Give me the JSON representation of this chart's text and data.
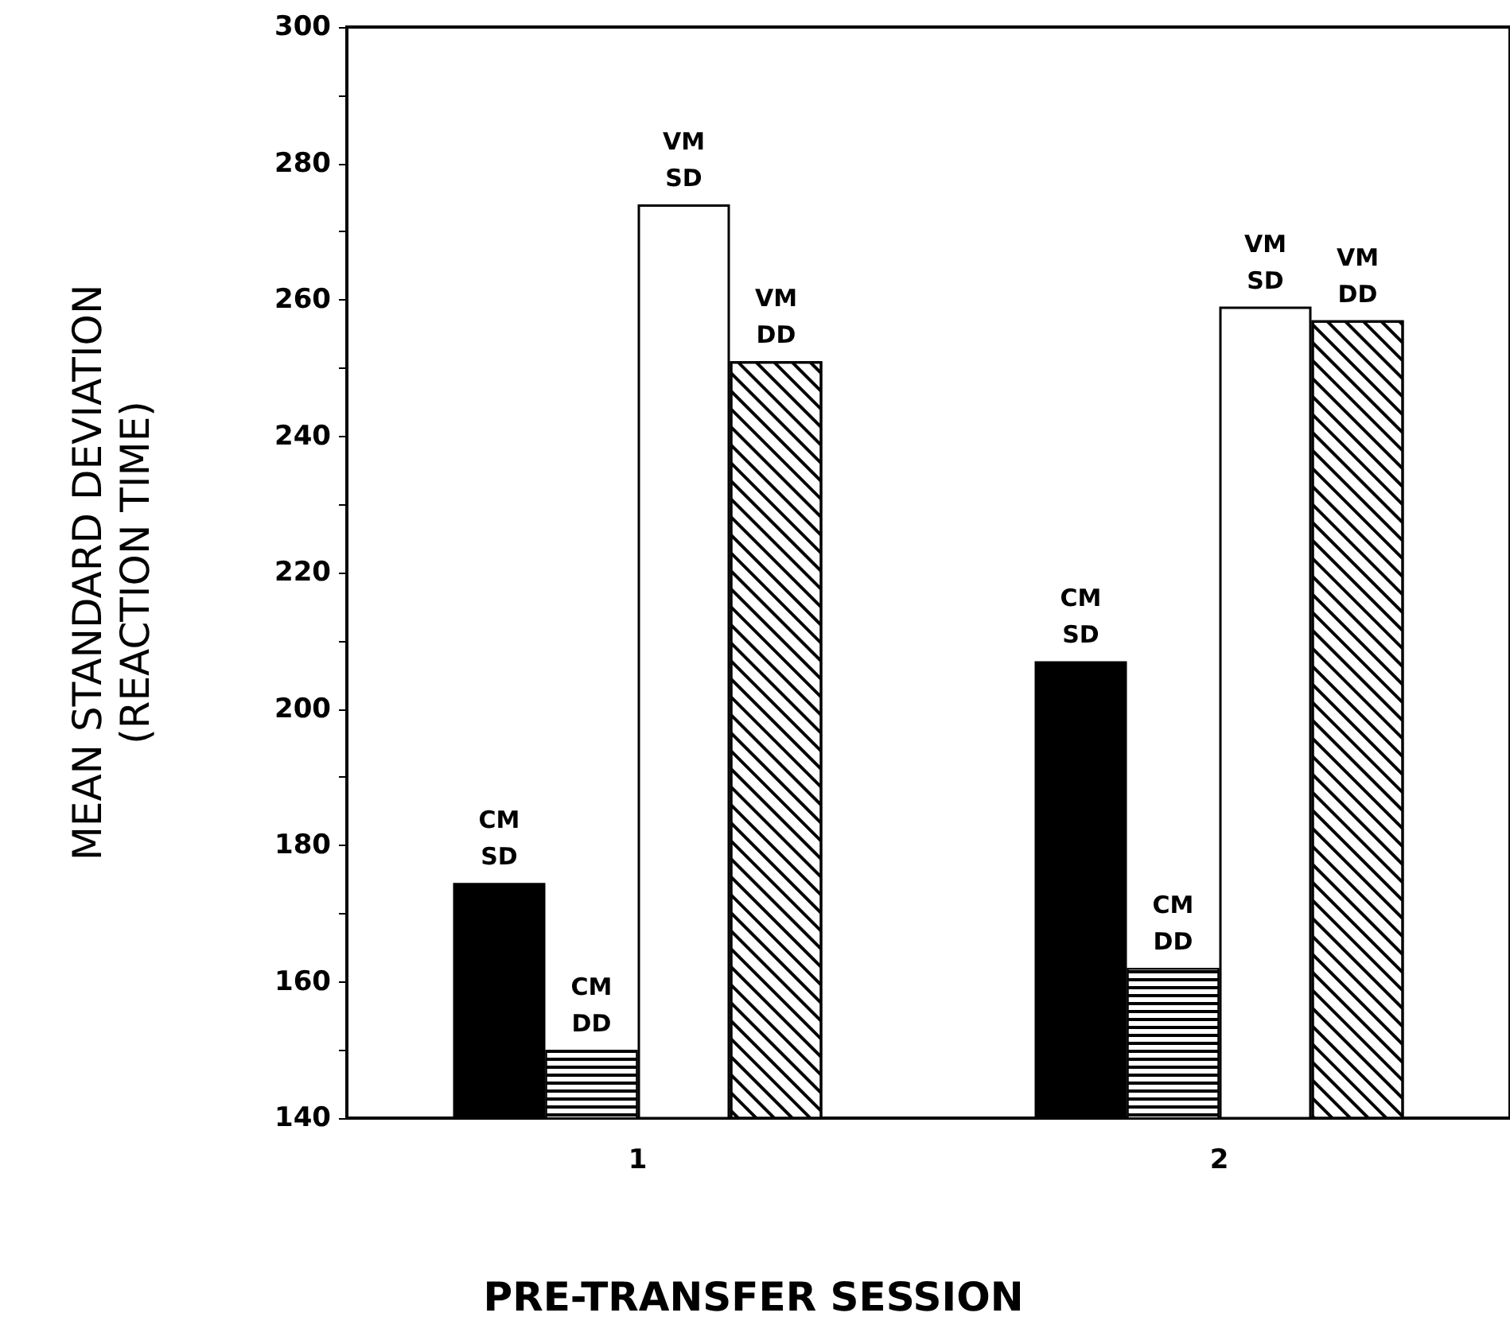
{
  "chart_data": {
    "type": "bar",
    "xlabel": "PRE-TRANSFER SESSION",
    "ylabel": "MEAN STANDARD DEVIATION\n(REACTION TIME)",
    "categories": [
      "1",
      "2"
    ],
    "series": [
      {
        "name": "CM SD",
        "color": "#000000",
        "values": [
          174.5,
          207
        ]
      },
      {
        "name": "CM DD",
        "color": "#000000",
        "values": [
          150,
          162
        ]
      },
      {
        "name": "VM SD",
        "color": "#ffffff",
        "values": [
          274,
          259
        ]
      },
      {
        "name": "VM DD",
        "color": "#000000",
        "values": [
          251,
          257
        ]
      }
    ],
    "ylim": [
      140,
      300
    ],
    "yticks": [
      140,
      160,
      180,
      200,
      220,
      240,
      260,
      280,
      300
    ],
    "grid": false,
    "legend": false
  }
}
